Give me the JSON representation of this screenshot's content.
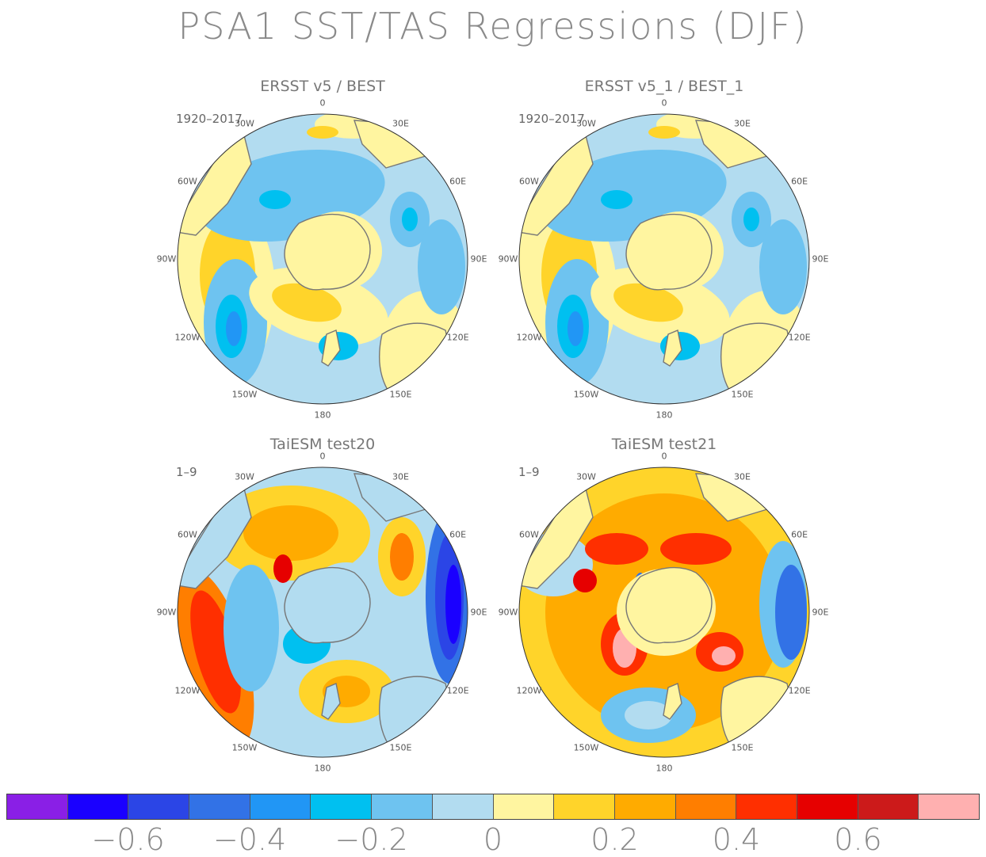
{
  "title": "PSA1 SST/TAS Regressions (DJF)",
  "panels": [
    {
      "id": "ersst-best",
      "title": "ERSST v5 / BEST",
      "period": "1920–2017",
      "pattern": "obs"
    },
    {
      "id": "ersst-best-1",
      "title": "ERSST v5_1 / BEST_1",
      "period": "1920–2017",
      "pattern": "obs"
    },
    {
      "id": "test20",
      "title": "TaiESM test20",
      "period": "1–9",
      "pattern": "m20"
    },
    {
      "id": "test21",
      "title": "TaiESM test21",
      "period": "1–9",
      "pattern": "m21"
    }
  ],
  "longitude_labels": [
    "0",
    "30E",
    "60E",
    "90E",
    "120E",
    "150E",
    "180",
    "150W",
    "120W",
    "90W",
    "60W",
    "30W"
  ],
  "colorbar": {
    "colors": [
      "#8a1fe6",
      "#1a00ff",
      "#2b45e6",
      "#3272e6",
      "#2196f5",
      "#00c0f0",
      "#6ec3f0",
      "#b2dcf0",
      "#fff5a0",
      "#ffd42a",
      "#ffab00",
      "#ff7e00",
      "#ff2f00",
      "#e60000",
      "#cc1a1a",
      "#ffb0b0"
    ],
    "tick_labels": [
      "−0.6",
      "−0.4",
      "−0.2",
      "0",
      "0.2",
      "0.4",
      "0.6"
    ],
    "tick_values": [
      -0.6,
      -0.4,
      -0.2,
      0,
      0.2,
      0.4,
      0.6
    ]
  }
}
